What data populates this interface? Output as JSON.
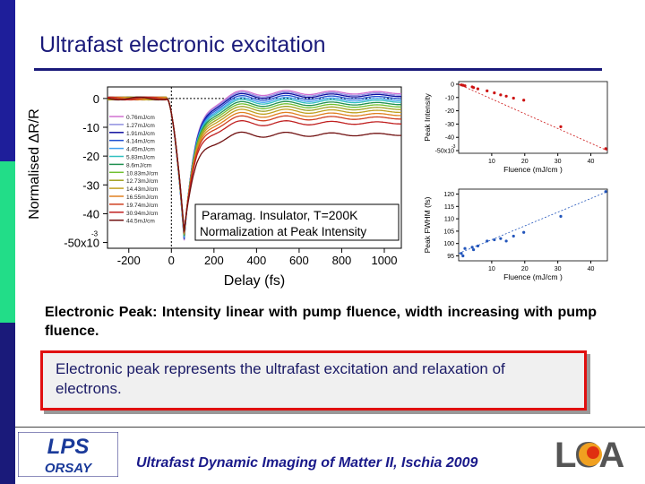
{
  "slide": {
    "title": "Ultrafast electronic excitation",
    "caption": "Electronic Peak: Intensity linear with pump fluence, width increasing with pump fluence.",
    "callout": "Electronic peak represents the ultrafast excitation and relaxation of electrons.",
    "footer": "Ultrafast Dynamic Imaging of Matter II, Ischia 2009",
    "logo_left": [
      "LPS",
      "ORSAY"
    ],
    "logo_right": "LCA"
  },
  "colors": {
    "stripe_dark": "#1e1e9a",
    "stripe_green": "#22dd88",
    "stripe_navy": "#1a1a7a",
    "accent_red": "#e01010",
    "title_blue": "#1a1a7a"
  },
  "chart_data": [
    {
      "type": "line",
      "title": "",
      "xlabel": "Delay (fs)",
      "ylabel": "Normalised ΔR/R",
      "xlim": [
        -300,
        1080
      ],
      "ylim": [
        -0.052,
        0.004
      ],
      "x_ticks": [
        -200,
        0,
        200,
        400,
        600,
        800,
        1000
      ],
      "x_tick_labels": [
        "-200",
        "0",
        "200",
        "400",
        "600",
        "800",
        "1000"
      ],
      "y_ticks": [
        0,
        -0.01,
        -0.02,
        -0.03,
        -0.04,
        -0.05
      ],
      "y_tick_labels": [
        "0",
        "-10",
        "-20",
        "-30",
        "-40",
        "-50x10"
      ],
      "y_tick_exponent": "-3",
      "annotation_lines": [
        "Paramag. Insulator, T=200K",
        "Normalization at Peak Intensity"
      ],
      "legend_position": "left",
      "series": [
        {
          "name": "0.76mJ/cm",
          "color": "#d070d0",
          "offset": 0.002
        },
        {
          "name": "1.27mJ/cm",
          "color": "#9090e0",
          "offset": 0.0015
        },
        {
          "name": "1.91mJ/cm",
          "color": "#1010a0",
          "offset": 0.001
        },
        {
          "name": "4.14mJ/cm",
          "color": "#2050d0",
          "offset": 0.0003
        },
        {
          "name": "4.45mJ/cm",
          "color": "#40a0f0",
          "offset": -0.0004
        },
        {
          "name": "5.83mJ/cm",
          "color": "#30c0c0",
          "offset": -0.001
        },
        {
          "name": "8.6mJ/cm",
          "color": "#209050",
          "offset": -0.0018
        },
        {
          "name": "10.83mJ/cm",
          "color": "#70c030",
          "offset": -0.0026
        },
        {
          "name": "12.73mJ/cm",
          "color": "#a0a020",
          "offset": -0.0035
        },
        {
          "name": "14.43mJ/cm",
          "color": "#c0a020",
          "offset": -0.0045
        },
        {
          "name": "16.55mJ/cm",
          "color": "#e08020",
          "offset": -0.0056
        },
        {
          "name": "19.74mJ/cm",
          "color": "#d04020",
          "offset": -0.0068
        },
        {
          "name": "30.94mJ/cm",
          "color": "#c02020",
          "offset": -0.0085
        },
        {
          "name": "44.5mJ/cm",
          "color": "#701010",
          "offset": -0.0125
        }
      ]
    },
    {
      "type": "scatter",
      "xlabel": "Fluence (mJ/cm )",
      "ylabel": "Peak Intensity",
      "xlim": [
        0,
        45
      ],
      "ylim": [
        -0.052,
        0.002
      ],
      "x_ticks": [
        10,
        20,
        30,
        40
      ],
      "x_tick_labels": [
        "10",
        "20",
        "30",
        "40"
      ],
      "y_ticks": [
        0,
        -0.01,
        -0.02,
        -0.03,
        -0.04,
        -0.05
      ],
      "y_tick_labels": [
        "0",
        "-10",
        "-20",
        "-30",
        "-40",
        "-50x10"
      ],
      "y_tick_exponent": "-3",
      "x": [
        0.8,
        1.3,
        1.9,
        4.1,
        4.5,
        5.8,
        8.6,
        10.8,
        12.7,
        14.4,
        16.6,
        19.7,
        30.9,
        44.5
      ],
      "y": [
        -0.0005,
        -0.0008,
        -0.0012,
        -0.002,
        -0.0025,
        -0.0035,
        -0.005,
        -0.0065,
        -0.008,
        -0.009,
        -0.0105,
        -0.012,
        -0.032,
        -0.0485
      ],
      "fit": [
        [
          0,
          0.0
        ],
        [
          45,
          -0.05
        ]
      ],
      "color": "#cc1111"
    },
    {
      "type": "scatter",
      "xlabel": "Fluence (mJ/cm )",
      "ylabel": "Peak FWHM (fs)",
      "xlim": [
        0,
        45
      ],
      "ylim": [
        93,
        122
      ],
      "x_ticks": [
        10,
        20,
        30,
        40
      ],
      "x_tick_labels": [
        "10",
        "20",
        "30",
        "40"
      ],
      "y_ticks": [
        95,
        100,
        105,
        110,
        115,
        120
      ],
      "y_tick_labels": [
        "95",
        "100",
        "105",
        "110",
        "115",
        "120"
      ],
      "x": [
        0.8,
        1.3,
        1.9,
        4.1,
        4.5,
        5.8,
        8.6,
        10.8,
        12.7,
        14.4,
        16.6,
        19.7,
        30.9,
        44.5
      ],
      "y": [
        96,
        95,
        98,
        98.5,
        97.5,
        99,
        101,
        101.5,
        102,
        101,
        103,
        104.5,
        111,
        121
      ],
      "fit": [
        [
          0,
          96
        ],
        [
          45,
          121
        ]
      ],
      "color": "#2255bb"
    }
  ]
}
